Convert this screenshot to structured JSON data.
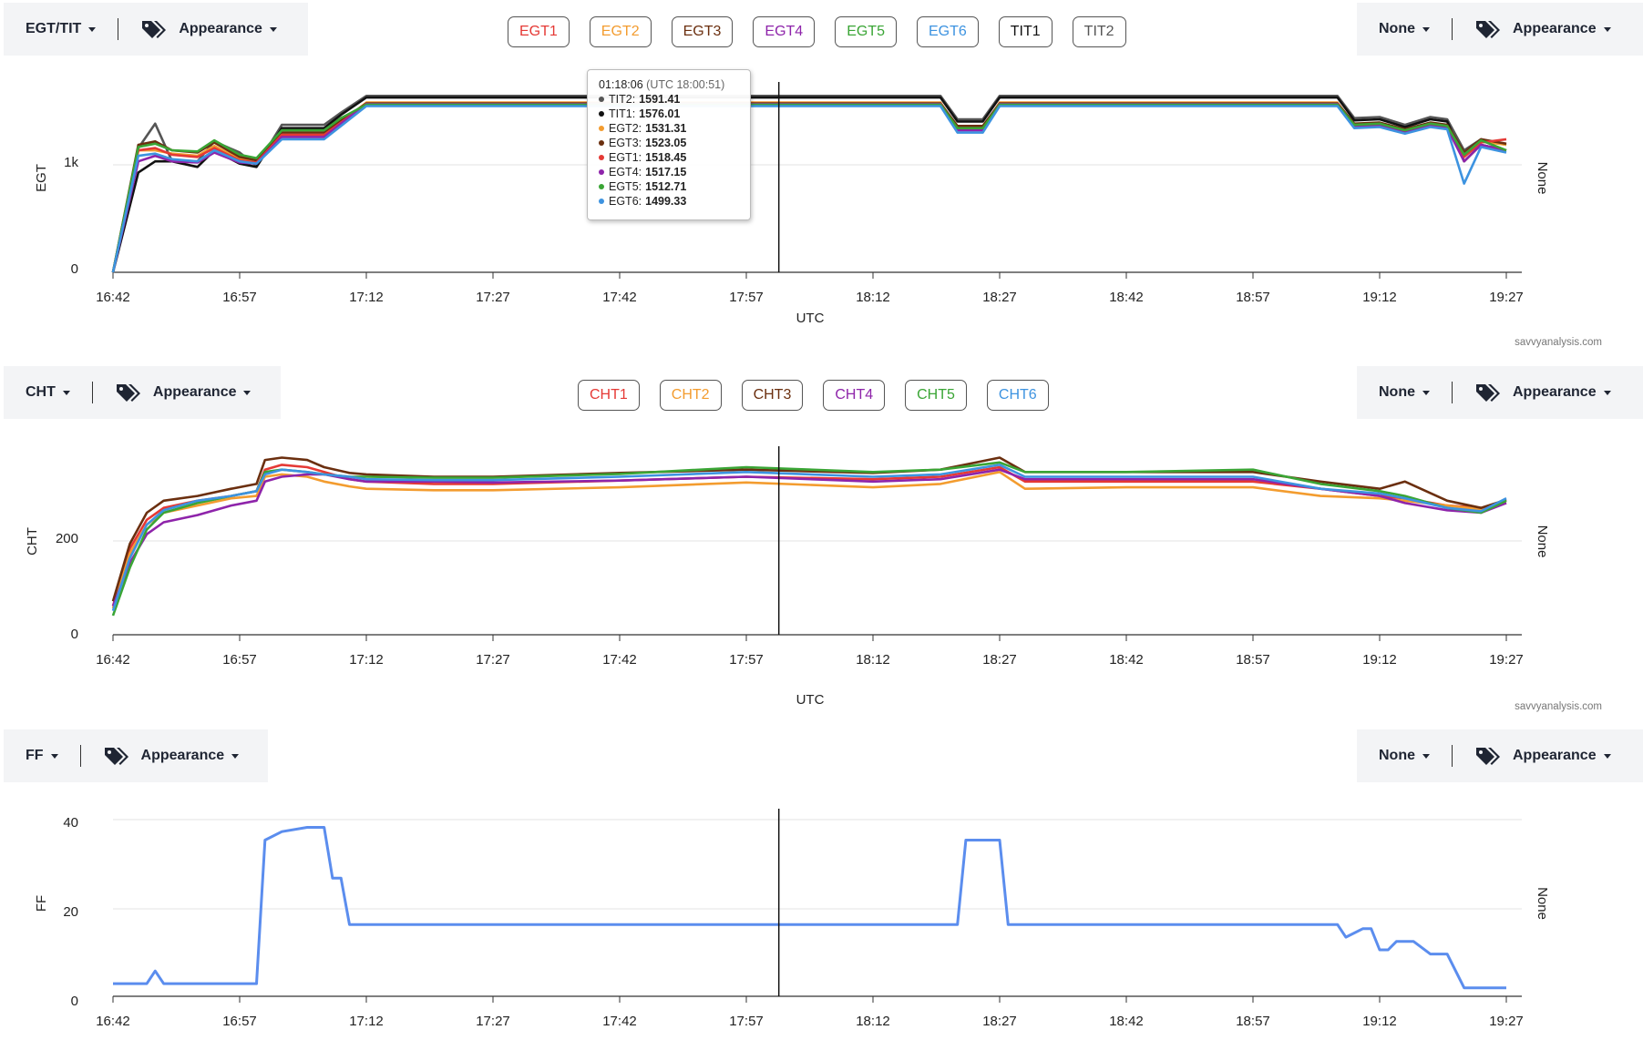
{
  "panels": [
    {
      "id": "egt",
      "left_control": {
        "label": "EGT/TIT",
        "appearance": "Appearance"
      },
      "right_control": {
        "label": "None",
        "appearance": "Appearance"
      },
      "legend": [
        {
          "label": "EGT1",
          "color": "#e53935"
        },
        {
          "label": "EGT2",
          "color": "#f39c2f"
        },
        {
          "label": "EGT3",
          "color": "#6b2f0f"
        },
        {
          "label": "EGT4",
          "color": "#8e24aa"
        },
        {
          "label": "EGT5",
          "color": "#3aa535"
        },
        {
          "label": "EGT6",
          "color": "#3d93e0"
        },
        {
          "label": "TIT1",
          "color": "#111111"
        },
        {
          "label": "TIT2",
          "color": "#555555"
        }
      ],
      "ylabel": "EGT",
      "right_label": "None",
      "xlabel": "UTC",
      "brand": "savvyanalysis.com",
      "yticks": [
        "1k",
        "0"
      ]
    },
    {
      "id": "cht",
      "left_control": {
        "label": "CHT",
        "appearance": "Appearance"
      },
      "right_control": {
        "label": "None",
        "appearance": "Appearance"
      },
      "legend": [
        {
          "label": "CHT1",
          "color": "#e53935"
        },
        {
          "label": "CHT2",
          "color": "#f39c2f"
        },
        {
          "label": "CHT3",
          "color": "#6b2f0f"
        },
        {
          "label": "CHT4",
          "color": "#8e24aa"
        },
        {
          "label": "CHT5",
          "color": "#3aa535"
        },
        {
          "label": "CHT6",
          "color": "#3d93e0"
        }
      ],
      "ylabel": "CHT",
      "right_label": "None",
      "xlabel": "UTC",
      "brand": "savvyanalysis.com",
      "yticks": [
        "200",
        "0"
      ]
    },
    {
      "id": "ff",
      "left_control": {
        "label": "FF",
        "appearance": "Appearance"
      },
      "right_control": {
        "label": "None",
        "appearance": "Appearance"
      },
      "legend": [],
      "ylabel": "FF",
      "right_label": "None",
      "yticks": [
        "40",
        "20",
        "0"
      ]
    }
  ],
  "xticks": [
    "16:42",
    "16:57",
    "17:12",
    "17:27",
    "17:42",
    "17:57",
    "18:12",
    "18:27",
    "18:42",
    "18:57",
    "19:12",
    "19:27"
  ],
  "tooltip": {
    "time": "01:18:06",
    "utc": "(UTC 18:00:51)",
    "rows": [
      {
        "name": "TIT2",
        "value": "1591.41",
        "color": "#555555"
      },
      {
        "name": "TIT1",
        "value": "1576.01",
        "color": "#111111"
      },
      {
        "name": "EGT2",
        "value": "1531.31",
        "color": "#f39c2f"
      },
      {
        "name": "EGT3",
        "value": "1523.05",
        "color": "#6b2f0f"
      },
      {
        "name": "EGT1",
        "value": "1518.45",
        "color": "#e53935"
      },
      {
        "name": "EGT4",
        "value": "1517.15",
        "color": "#8e24aa"
      },
      {
        "name": "EGT5",
        "value": "1512.71",
        "color": "#3aa535"
      },
      {
        "name": "EGT6",
        "value": "1499.33",
        "color": "#3d93e0"
      }
    ]
  },
  "chart_data": [
    {
      "type": "line",
      "ylabel": "EGT",
      "xlabel": "UTC",
      "x": [
        "16:42",
        "16:45",
        "16:47",
        "16:49",
        "16:52",
        "16:54",
        "16:57",
        "16:59",
        "17:02",
        "17:05",
        "17:07",
        "17:09",
        "17:12",
        "17:27",
        "17:42",
        "17:57",
        "18:12",
        "18:20",
        "18:22",
        "18:25",
        "18:27",
        "18:42",
        "18:57",
        "19:07",
        "19:09",
        "19:12",
        "19:15",
        "19:18",
        "19:20",
        "19:22",
        "19:24",
        "19:27"
      ],
      "ylim": [
        0,
        1700
      ],
      "series": [
        {
          "name": "TIT2",
          "values": [
            0,
            1120,
            1340,
            1000,
            1000,
            1180,
            1080,
            960,
            1330,
            1330,
            1330,
            1440,
            1591,
            1591,
            1591,
            1591,
            1591,
            1591,
            1380,
            1380,
            1591,
            1591,
            1591,
            1591,
            1390,
            1400,
            1330,
            1400,
            1380,
            1100,
            1200,
            1150
          ]
        },
        {
          "name": "TIT1",
          "values": [
            0,
            900,
            1000,
            1000,
            950,
            1100,
            980,
            950,
            1300,
            1300,
            1300,
            1420,
            1576,
            1576,
            1576,
            1576,
            1576,
            1576,
            1360,
            1360,
            1576,
            1576,
            1576,
            1576,
            1370,
            1380,
            1310,
            1380,
            1360,
            1000,
            1150,
            1100
          ]
        },
        {
          "name": "EGT2",
          "values": [
            0,
            1100,
            1100,
            1070,
            1050,
            1140,
            1020,
            1000,
            1230,
            1230,
            1230,
            1350,
            1531,
            1531,
            1531,
            1531,
            1531,
            1531,
            1300,
            1300,
            1531,
            1531,
            1531,
            1531,
            1330,
            1340,
            1280,
            1340,
            1320,
            1050,
            1180,
            1150
          ]
        },
        {
          "name": "EGT3",
          "values": [
            0,
            1150,
            1180,
            1100,
            1080,
            1170,
            1040,
            1010,
            1260,
            1260,
            1260,
            1370,
            1523,
            1523,
            1523,
            1523,
            1523,
            1523,
            1320,
            1320,
            1523,
            1523,
            1523,
            1523,
            1340,
            1350,
            1290,
            1350,
            1330,
            1080,
            1200,
            1160
          ]
        },
        {
          "name": "EGT1",
          "values": [
            0,
            1100,
            1120,
            1060,
            1040,
            1120,
            1010,
            990,
            1240,
            1240,
            1240,
            1350,
            1518,
            1518,
            1518,
            1518,
            1518,
            1518,
            1290,
            1290,
            1518,
            1518,
            1518,
            1518,
            1320,
            1330,
            1270,
            1330,
            1310,
            1040,
            1170,
            1200
          ]
        },
        {
          "name": "EGT4",
          "values": [
            0,
            1000,
            1050,
            1000,
            990,
            1080,
            990,
            980,
            1220,
            1220,
            1220,
            1340,
            1517,
            1517,
            1517,
            1517,
            1517,
            1517,
            1280,
            1280,
            1517,
            1517,
            1517,
            1517,
            1310,
            1320,
            1260,
            1320,
            1300,
            1000,
            1150,
            1100
          ]
        },
        {
          "name": "EGT5",
          "values": [
            0,
            1130,
            1160,
            1100,
            1090,
            1190,
            1060,
            1030,
            1280,
            1280,
            1280,
            1390,
            1512,
            1512,
            1512,
            1512,
            1512,
            1512,
            1300,
            1300,
            1512,
            1512,
            1512,
            1512,
            1330,
            1340,
            1280,
            1340,
            1320,
            1060,
            1190,
            1100
          ]
        },
        {
          "name": "EGT6",
          "values": [
            0,
            1050,
            1070,
            1020,
            1000,
            1100,
            1000,
            980,
            1200,
            1200,
            1200,
            1320,
            1499,
            1499,
            1499,
            1499,
            1499,
            1499,
            1260,
            1260,
            1499,
            1499,
            1499,
            1499,
            1300,
            1310,
            1250,
            1310,
            1290,
            800,
            1130,
            1080
          ]
        }
      ]
    },
    {
      "type": "line",
      "ylabel": "CHT",
      "xlabel": "UTC",
      "x": [
        "16:42",
        "16:44",
        "16:46",
        "16:48",
        "16:52",
        "16:56",
        "16:59",
        "17:00",
        "17:02",
        "17:05",
        "17:07",
        "17:10",
        "17:12",
        "17:20",
        "17:27",
        "17:42",
        "17:57",
        "18:12",
        "18:20",
        "18:27",
        "18:30",
        "18:42",
        "18:57",
        "19:05",
        "19:12",
        "19:15",
        "19:20",
        "19:24",
        "19:27"
      ],
      "ylim": [
        0,
        390
      ],
      "series": [
        {
          "name": "CHT1",
          "values": [
            60,
            180,
            240,
            265,
            280,
            290,
            300,
            345,
            355,
            350,
            340,
            325,
            320,
            315,
            315,
            322,
            330,
            325,
            330,
            350,
            320,
            320,
            320,
            305,
            290,
            285,
            270,
            265,
            280
          ]
        },
        {
          "name": "CHT2",
          "values": [
            55,
            170,
            230,
            255,
            270,
            285,
            290,
            330,
            335,
            330,
            320,
            310,
            305,
            302,
            302,
            308,
            318,
            308,
            315,
            340,
            305,
            308,
            308,
            290,
            285,
            280,
            270,
            262,
            275
          ]
        },
        {
          "name": "CHT3",
          "values": [
            70,
            190,
            255,
            280,
            290,
            305,
            315,
            365,
            370,
            365,
            350,
            338,
            335,
            330,
            330,
            338,
            345,
            338,
            345,
            370,
            340,
            340,
            340,
            320,
            305,
            320,
            280,
            265,
            282
          ]
        },
        {
          "name": "CHT4",
          "values": [
            60,
            150,
            210,
            235,
            250,
            270,
            280,
            320,
            330,
            335,
            335,
            325,
            320,
            320,
            318,
            322,
            330,
            320,
            325,
            345,
            325,
            325,
            325,
            305,
            290,
            275,
            260,
            255,
            275
          ]
        },
        {
          "name": "CHT5",
          "values": [
            40,
            140,
            220,
            255,
            275,
            290,
            300,
            340,
            345,
            340,
            335,
            330,
            330,
            328,
            328,
            336,
            350,
            340,
            345,
            360,
            340,
            340,
            345,
            315,
            300,
            290,
            265,
            255,
            280
          ]
        },
        {
          "name": "CHT6",
          "values": [
            50,
            160,
            230,
            260,
            280,
            290,
            300,
            335,
            345,
            340,
            335,
            330,
            325,
            323,
            323,
            330,
            340,
            330,
            335,
            355,
            330,
            330,
            330,
            305,
            295,
            285,
            265,
            258,
            285
          ]
        }
      ]
    },
    {
      "type": "line",
      "ylabel": "FF",
      "x": [
        "16:42",
        "16:44",
        "16:46",
        "16:47",
        "16:48",
        "16:52",
        "16:56",
        "16:59",
        "17:00",
        "17:02",
        "17:05",
        "17:07",
        "17:08",
        "17:09",
        "17:10",
        "17:27",
        "17:42",
        "17:57",
        "18:12",
        "18:22",
        "18:23",
        "18:27",
        "18:28",
        "18:42",
        "18:57",
        "19:07",
        "19:08",
        "19:10",
        "19:11",
        "19:12",
        "19:13",
        "19:14",
        "19:16",
        "19:18",
        "19:19",
        "19:20",
        "19:22",
        "19:25",
        "19:27"
      ],
      "ylim": [
        0,
        44
      ],
      "series": [
        {
          "name": "FF",
          "values": [
            3,
            3,
            3,
            6,
            3,
            3,
            3,
            3,
            37,
            39,
            40,
            40,
            28,
            28,
            17,
            17,
            17,
            17,
            17,
            17,
            37,
            37,
            17,
            17,
            17,
            17,
            14,
            16,
            16,
            11,
            11,
            13,
            13,
            10,
            10,
            10,
            2,
            2,
            2
          ]
        }
      ]
    }
  ]
}
